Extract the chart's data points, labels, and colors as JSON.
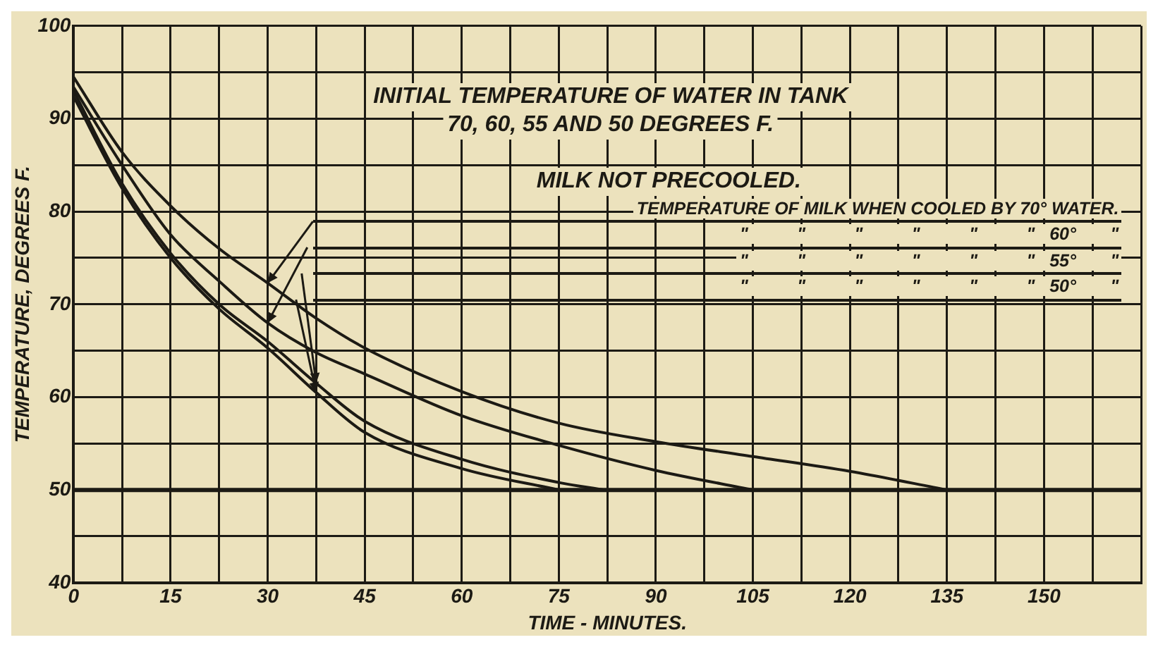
{
  "chart_data": {
    "type": "line",
    "xlabel": "TIME - MINUTES.",
    "ylabel": "TEMPERATURE, DEGREES F.",
    "annotations": [
      "INITIAL TEMPERATURE OF WATER IN TANK",
      "70, 60, 55 AND 50 DEGREES F.",
      "MILK NOT PRECOOLED."
    ],
    "series": [
      {
        "name": "TEMPERATURE OF MILK WHEN COOLED BY 70° WATER.",
        "color": "#1c1a14",
        "x": [
          0,
          7.5,
          15,
          22.5,
          30,
          37.5,
          45,
          60,
          75,
          90,
          105,
          120,
          135
        ],
        "values": [
          94.5,
          86.4,
          80.6,
          76,
          72.3,
          68.5,
          65.3,
          60.6,
          57.2,
          55.2,
          53.6,
          52,
          50
        ]
      },
      {
        "name": "\"          \"          \"          \"          \"          \"   60°       \"",
        "color": "#1c1a14",
        "x": [
          0,
          7.5,
          15,
          22.5,
          30,
          37.5,
          45,
          60,
          75,
          90,
          105
        ],
        "values": [
          93.4,
          85,
          77.5,
          72.5,
          68,
          64.8,
          62.5,
          58,
          54.8,
          52.1,
          50
        ]
      },
      {
        "name": "\"          \"          \"          \"          \"          \"   55°       \"",
        "color": "#1c1a14",
        "x": [
          0,
          7.5,
          15,
          22.5,
          30,
          37.5,
          45,
          60,
          75,
          82
        ],
        "values": [
          93,
          83,
          75.5,
          70,
          66,
          61.5,
          57.4,
          53.3,
          50.8,
          50
        ]
      },
      {
        "name": "\"          \"          \"          \"          \"          \"   50°       \"",
        "color": "#1c1a14",
        "x": [
          0,
          7.5,
          15,
          22.5,
          30,
          37.5,
          45,
          60,
          75
        ],
        "values": [
          92.4,
          82.5,
          75,
          69.5,
          65.3,
          60.5,
          56.2,
          52.3,
          50
        ]
      }
    ],
    "ref_lines": [
      {
        "axis": "y",
        "value": 50,
        "color": "#1c1a14"
      }
    ],
    "xlim": [
      0,
      165
    ],
    "xticks": [
      0,
      {
        "value": 7.5,
        "label": null
      },
      15,
      {
        "value": 22.5,
        "label": null
      },
      30,
      {
        "value": 37.5,
        "label": null
      },
      45,
      {
        "value": 52.5,
        "label": null
      },
      60,
      {
        "value": 67.5,
        "label": null
      },
      75,
      {
        "value": 82.5,
        "label": null
      },
      90,
      {
        "value": 97.5,
        "label": null
      },
      105,
      {
        "value": 112.5,
        "label": null
      },
      120,
      {
        "value": 127.5,
        "label": null
      },
      135,
      {
        "value": 142.5,
        "label": null
      },
      150,
      {
        "value": 157.5,
        "label": null
      },
      {
        "value": 165,
        "label": null
      }
    ],
    "ylim": [
      40,
      100
    ],
    "yticks": [
      40,
      {
        "value": 45,
        "label": null
      },
      50,
      {
        "value": 55,
        "label": null
      },
      60,
      {
        "value": 65,
        "label": null
      },
      70,
      {
        "value": 75,
        "label": null
      },
      80,
      {
        "value": 85,
        "label": null
      },
      90,
      {
        "value": 95,
        "label": null
      },
      100
    ],
    "grid": true,
    "legend": "right",
    "marker": "none",
    "line_style": "solid"
  }
}
